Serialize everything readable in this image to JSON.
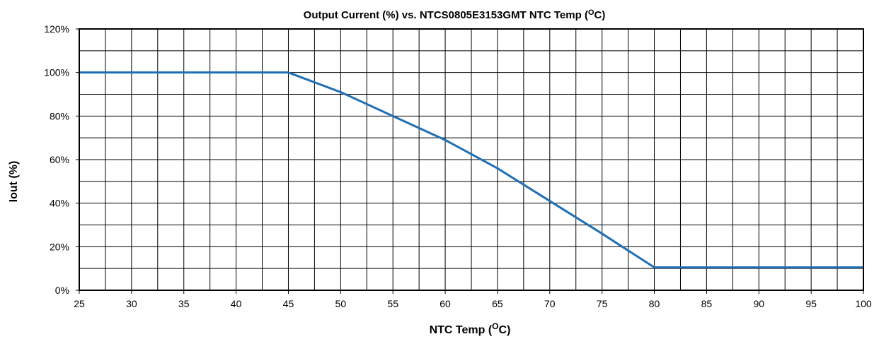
{
  "chart_data": {
    "type": "line",
    "title": "Output Current (%) vs. NTCS0805E3153GMT NTC Temp (",
    "title_sup": "O",
    "title_suffix": "C)",
    "xlabel": "NTC Temp (",
    "xlabel_sup": "O",
    "xlabel_suffix": "C)",
    "ylabel": "Iout (%)",
    "xlim": [
      25,
      100
    ],
    "ylim": [
      0,
      120
    ],
    "x_ticks": [
      25,
      30,
      35,
      40,
      45,
      50,
      55,
      60,
      65,
      70,
      75,
      80,
      85,
      90,
      95,
      100
    ],
    "x_tick_labels": [
      "25",
      "30",
      "35",
      "40",
      "45",
      "50",
      "55",
      "60",
      "65",
      "70",
      "75",
      "80",
      "85",
      "90",
      "95",
      "100"
    ],
    "y_ticks": [
      0,
      20,
      40,
      60,
      80,
      100,
      120
    ],
    "y_tick_labels": [
      "0%",
      "20%",
      "40%",
      "60%",
      "80%",
      "100%",
      "120%"
    ],
    "x_minor_step": 2.5,
    "y_minor_step": 10,
    "grid": true,
    "series": [
      {
        "color": "#1f6fb4",
        "x": [
          25,
          45,
          50,
          55,
          60,
          65,
          70,
          75,
          80,
          100
        ],
        "y": [
          100,
          100,
          91,
          80,
          69,
          56,
          41,
          26,
          10.5,
          10.5
        ]
      }
    ]
  }
}
